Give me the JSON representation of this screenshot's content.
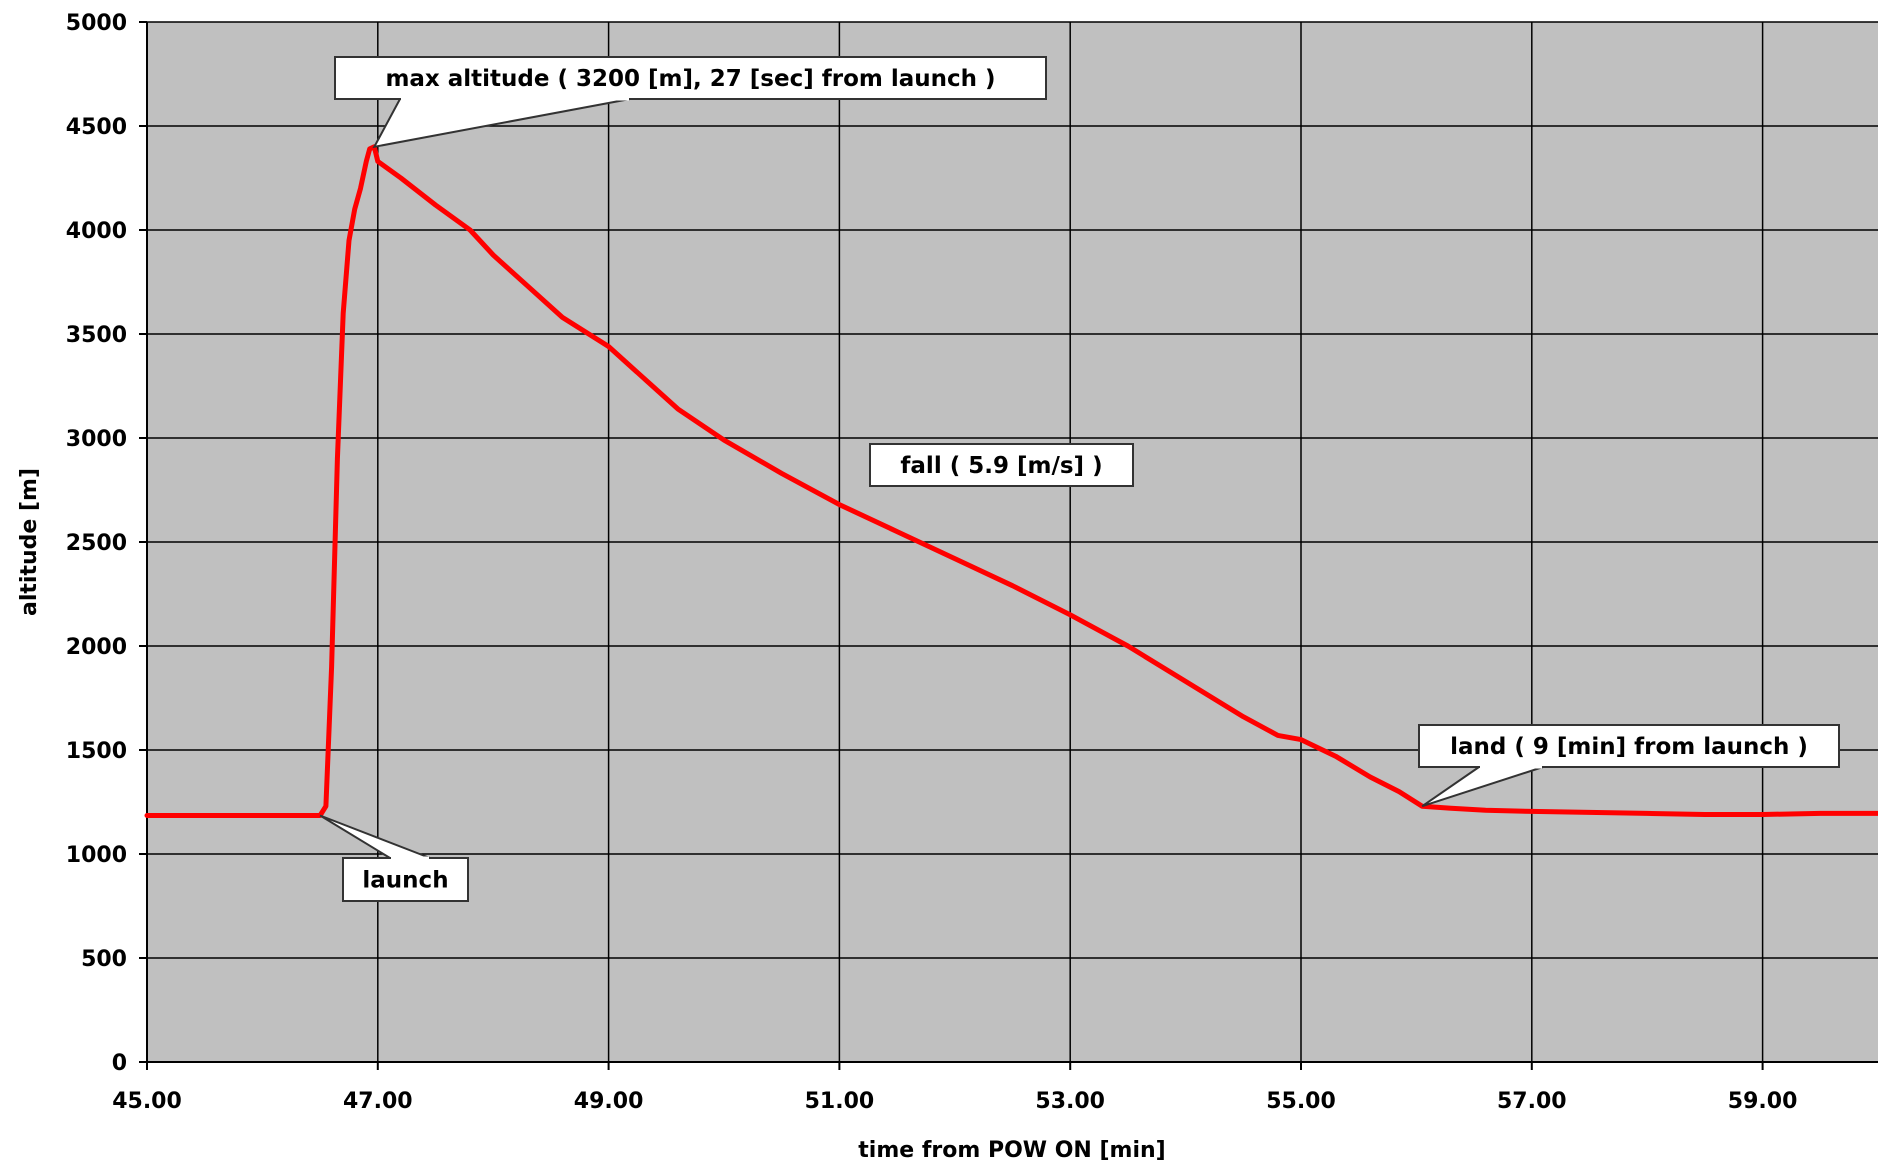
{
  "chart_data": {
    "type": "line",
    "title": "",
    "xlabel": "time from POW ON [min]",
    "ylabel": "altitude [m]",
    "xlim": [
      45,
      60
    ],
    "ylim": [
      0,
      5000
    ],
    "x_ticks": [
      "45.00",
      "47.00",
      "49.00",
      "51.00",
      "53.00",
      "55.00",
      "57.00",
      "59.00"
    ],
    "y_ticks": [
      "0",
      "500",
      "1000",
      "1500",
      "2000",
      "2500",
      "3000",
      "3500",
      "4000",
      "4500",
      "5000"
    ],
    "grid": true,
    "plot_background": "#c0c0c0",
    "series": [
      {
        "color": "#ff0000",
        "x": [
          45.0,
          46.5,
          46.55,
          46.6,
          46.65,
          46.7,
          46.75,
          46.8,
          46.85,
          46.9,
          46.93,
          46.97,
          47.0,
          47.2,
          47.5,
          47.8,
          48.0,
          48.3,
          48.6,
          49.0,
          49.3,
          49.6,
          50.0,
          50.5,
          51.0,
          51.5,
          52.0,
          52.5,
          53.0,
          53.5,
          54.0,
          54.5,
          54.8,
          55.0,
          55.3,
          55.6,
          55.85,
          56.05,
          56.3,
          56.6,
          57.0,
          57.5,
          58.0,
          58.5,
          59.0,
          59.5,
          60.0
        ],
        "y": [
          1185,
          1185,
          1230,
          1900,
          2900,
          3600,
          3950,
          4100,
          4200,
          4330,
          4390,
          4400,
          4330,
          4250,
          4120,
          4000,
          3880,
          3730,
          3580,
          3440,
          3290,
          3140,
          2990,
          2830,
          2680,
          2550,
          2420,
          2290,
          2150,
          2000,
          1830,
          1660,
          1570,
          1550,
          1470,
          1370,
          1300,
          1230,
          1220,
          1210,
          1205,
          1200,
          1195,
          1190,
          1190,
          1195,
          1195
        ]
      }
    ],
    "annotations": [
      {
        "text": "max altitude ( 3200 [m], 27 [sec] from launch )",
        "x": 46.97,
        "y": 4400
      },
      {
        "text": "fall ( 5.9 [m/s] )",
        "x": 52.3,
        "y": 2800
      },
      {
        "text": "land ( 9 [min] from launch )",
        "x": 56.05,
        "y": 1230
      },
      {
        "text": "launch",
        "x": 46.5,
        "y": 1185
      }
    ]
  }
}
